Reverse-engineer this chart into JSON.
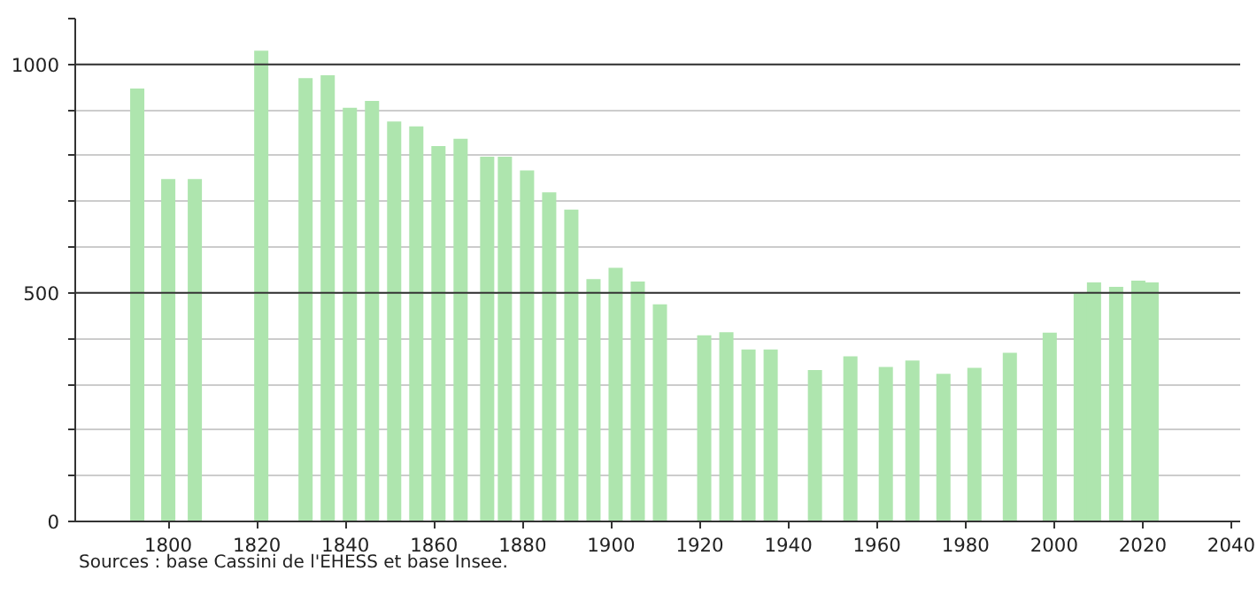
{
  "chart_data": {
    "type": "bar",
    "color": "#aee5ae",
    "x": [
      1793,
      1800,
      1806,
      1821,
      1831,
      1836,
      1841,
      1846,
      1851,
      1856,
      1861,
      1866,
      1872,
      1876,
      1881,
      1886,
      1891,
      1896,
      1901,
      1906,
      1911,
      1921,
      1926,
      1931,
      1936,
      1946,
      1954,
      1962,
      1968,
      1975,
      1982,
      1990,
      1999,
      2006,
      2009,
      2014,
      2019,
      2022
    ],
    "values": [
      947,
      749,
      749,
      1030,
      970,
      976,
      905,
      920,
      875,
      864,
      821,
      837,
      798,
      798,
      768,
      720,
      682,
      530,
      555,
      525,
      475,
      407,
      414,
      376,
      376,
      331,
      361,
      338,
      352,
      323,
      336,
      369,
      413,
      500,
      523,
      513,
      527,
      523
    ],
    "xlim": [
      1779,
      2042
    ],
    "ylim": [
      0,
      1100
    ],
    "xticks": [
      1800,
      1820,
      1840,
      1860,
      1880,
      1900,
      1920,
      1940,
      1960,
      1980,
      2000,
      2020,
      2040
    ],
    "yticks": [
      0,
      {
        "value": 100,
        "label": null
      },
      {
        "value": 200,
        "label": null
      },
      {
        "value": 300,
        "label": null
      },
      {
        "value": 400,
        "label": null
      },
      500,
      {
        "value": 600,
        "label": null
      },
      {
        "value": 700,
        "label": null
      },
      {
        "value": 800,
        "label": null
      },
      {
        "value": 900,
        "label": null
      },
      1000,
      {
        "value": 1100,
        "label": null
      }
    ],
    "grid": "y",
    "annotations": [
      "Sources : base Cassini de l'EHESS et base Insee."
    ]
  }
}
